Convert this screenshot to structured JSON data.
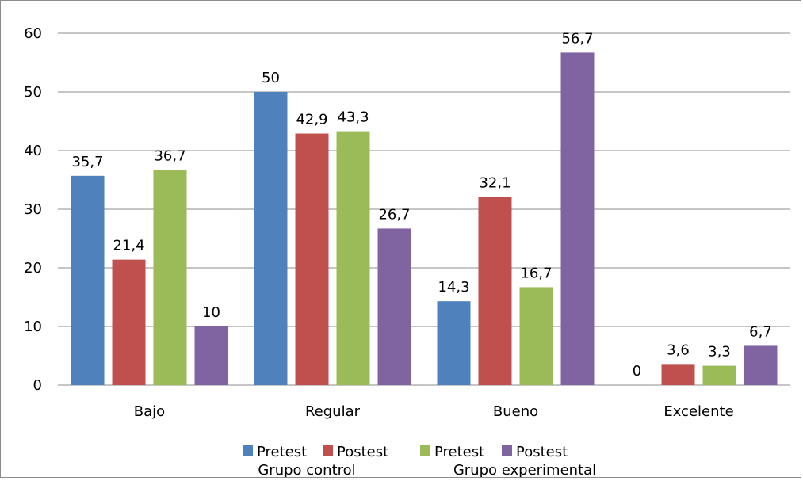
{
  "chart_data": {
    "type": "bar",
    "categories": [
      "Bajo",
      "Regular",
      "Bueno",
      "Excelente"
    ],
    "series": [
      {
        "name": "Pretest",
        "color": "#4f81bd",
        "values": [
          35.7,
          50,
          14.3,
          0
        ],
        "labels": [
          "35,7",
          "50",
          "14,3",
          "0"
        ]
      },
      {
        "name": "Postest",
        "color": "#c0504d",
        "values": [
          21.4,
          42.9,
          32.1,
          3.6
        ],
        "labels": [
          "21,4",
          "42,9",
          "32,1",
          "3,6"
        ]
      },
      {
        "name": "Pretest",
        "color": "#9bbb59",
        "values": [
          36.7,
          43.3,
          16.7,
          3.3
        ],
        "labels": [
          "36,7",
          "43,3",
          "16,7",
          "3,3"
        ]
      },
      {
        "name": "Postest",
        "color": "#8064a2",
        "values": [
          10,
          26.7,
          56.7,
          6.7
        ],
        "labels": [
          "10",
          "26,7",
          "56,7",
          "6,7"
        ]
      }
    ],
    "ylim": [
      0,
      60
    ],
    "yticks": [
      0,
      10,
      20,
      30,
      40,
      50,
      60
    ],
    "grid": true,
    "legend_position": "bottom",
    "legend_groups": [
      "Grupo control",
      "Grupo experimental"
    ],
    "gridline_color": "#8c8c8c"
  }
}
